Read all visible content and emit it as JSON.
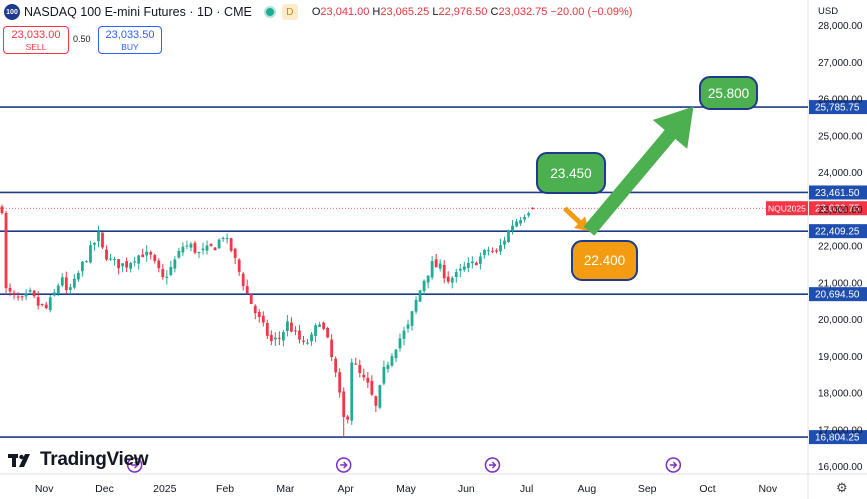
{
  "header": {
    "symbol_badge": "100",
    "title": "NASDAQ 100 E-mini Futures · 1D · CME",
    "session_badge": "D",
    "ohlc": {
      "o_label": "O",
      "o": "23,041.00",
      "h_label": "H",
      "h": "23,065.25",
      "l_label": "L",
      "l": "22,976.50",
      "c_label": "C",
      "c": "23,032.75",
      "change": "−20.00 (−0.09%)"
    }
  },
  "trade": {
    "sell_price": "23,033.00",
    "sell_label": "SELL",
    "spread": "0.50",
    "buy_price": "23,033.50",
    "buy_label": "BUY"
  },
  "currency": "USD",
  "logo_text": "TradingView",
  "colors": {
    "up": "#22ab94",
    "down": "#f23645",
    "level_line": "#1e3a8a",
    "axis_badge": "#1e4fb0",
    "green_arrow": "#4caf50",
    "orange_arrow": "#f39c12"
  },
  "callouts": {
    "c1": "23.450",
    "c2": "22.400",
    "c3": "25.800"
  },
  "chart_data": {
    "type": "candlestick",
    "symbol": "NQU2025",
    "interval": "1D",
    "ylim": [
      15800,
      28700
    ],
    "y_ticks": [
      16000,
      17000,
      18000,
      19000,
      20000,
      21000,
      22000,
      23000,
      24000,
      25000,
      26000,
      27000,
      28000
    ],
    "y_tick_labels": [
      "16,000.00",
      "17,000.00",
      "18,000.00",
      "19,000.00",
      "20,000.00",
      "21,000.00",
      "22,000.00",
      "23,000.00",
      "24,000.00",
      "25,000.00",
      "26,000.00",
      "27,000.00",
      "28,000.00"
    ],
    "x_tick_labels": [
      "Nov",
      "Dec",
      "2025",
      "Feb",
      "Mar",
      "Apr",
      "May",
      "Jun",
      "Jul",
      "Aug",
      "Sep",
      "Oct",
      "Nov"
    ],
    "horizontal_levels": [
      {
        "value": 25785.75,
        "label": "25,785.75"
      },
      {
        "value": 23461.5,
        "label": "23,461.50"
      },
      {
        "value": 22409.25,
        "label": "22,409.25"
      },
      {
        "value": 20694.5,
        "label": "20,694.50"
      },
      {
        "value": 16804.25,
        "label": "16,804.25"
      }
    ],
    "last_price": {
      "value": 23032.75,
      "label": "23,032.75",
      "symbol_label": "NQU2025"
    },
    "close_path": [
      [
        1,
        20800
      ],
      [
        3,
        20600
      ],
      [
        5,
        20500
      ],
      [
        7,
        20700
      ],
      [
        9,
        20400
      ],
      [
        11,
        20300
      ],
      [
        13,
        20700
      ],
      [
        15,
        21200
      ],
      [
        16,
        20700
      ],
      [
        18,
        21000
      ],
      [
        20,
        21500
      ],
      [
        22,
        21900
      ],
      [
        24,
        22300
      ],
      [
        25,
        21900
      ],
      [
        27,
        21600
      ],
      [
        29,
        21500
      ],
      [
        31,
        21500
      ],
      [
        33,
        21700
      ],
      [
        35,
        21800
      ],
      [
        37,
        21700
      ],
      [
        39,
        21300
      ],
      [
        40,
        21100
      ],
      [
        42,
        21400
      ],
      [
        44,
        21800
      ],
      [
        45,
        22000
      ],
      [
        47,
        22000
      ],
      [
        49,
        21800
      ],
      [
        51,
        21900
      ],
      [
        53,
        22000
      ],
      [
        55,
        22300
      ],
      [
        57,
        21900
      ],
      [
        59,
        21300
      ],
      [
        61,
        20700
      ],
      [
        63,
        20200
      ],
      [
        65,
        19800
      ],
      [
        67,
        19400
      ],
      [
        69,
        19500
      ],
      [
        71,
        19900
      ],
      [
        73,
        19600
      ],
      [
        75,
        19300
      ],
      [
        77,
        19500
      ],
      [
        79,
        20000
      ],
      [
        81,
        19400
      ],
      [
        83,
        18500
      ],
      [
        85,
        17300
      ],
      [
        86,
        17400
      ],
      [
        87,
        18900
      ],
      [
        89,
        18500
      ],
      [
        91,
        18200
      ],
      [
        93,
        17600
      ],
      [
        95,
        18600
      ],
      [
        97,
        19100
      ],
      [
        99,
        19500
      ],
      [
        101,
        19800
      ],
      [
        103,
        20500
      ],
      [
        105,
        21100
      ],
      [
        107,
        21500
      ],
      [
        109,
        21400
      ],
      [
        111,
        21100
      ],
      [
        113,
        21200
      ],
      [
        115,
        21400
      ],
      [
        117,
        21500
      ],
      [
        119,
        21700
      ],
      [
        121,
        21900
      ],
      [
        123,
        21800
      ],
      [
        125,
        22200
      ],
      [
        127,
        22600
      ],
      [
        129,
        22800
      ],
      [
        131,
        23000
      ],
      [
        132,
        23030
      ]
    ],
    "projection_arrows": [
      {
        "from": [
          140,
          23032
        ],
        "to": [
          146,
          22409
        ],
        "color": "orange"
      },
      {
        "from": [
          146,
          22409
        ],
        "to": [
          172,
          25800
        ],
        "color": "green"
      }
    ],
    "event_markers_x": [
      33,
      85,
      122,
      167
    ],
    "x_tick_index": [
      10,
      25,
      40,
      55,
      70,
      85,
      100,
      115,
      130,
      145,
      160,
      175,
      190
    ],
    "bars_total": 200
  }
}
